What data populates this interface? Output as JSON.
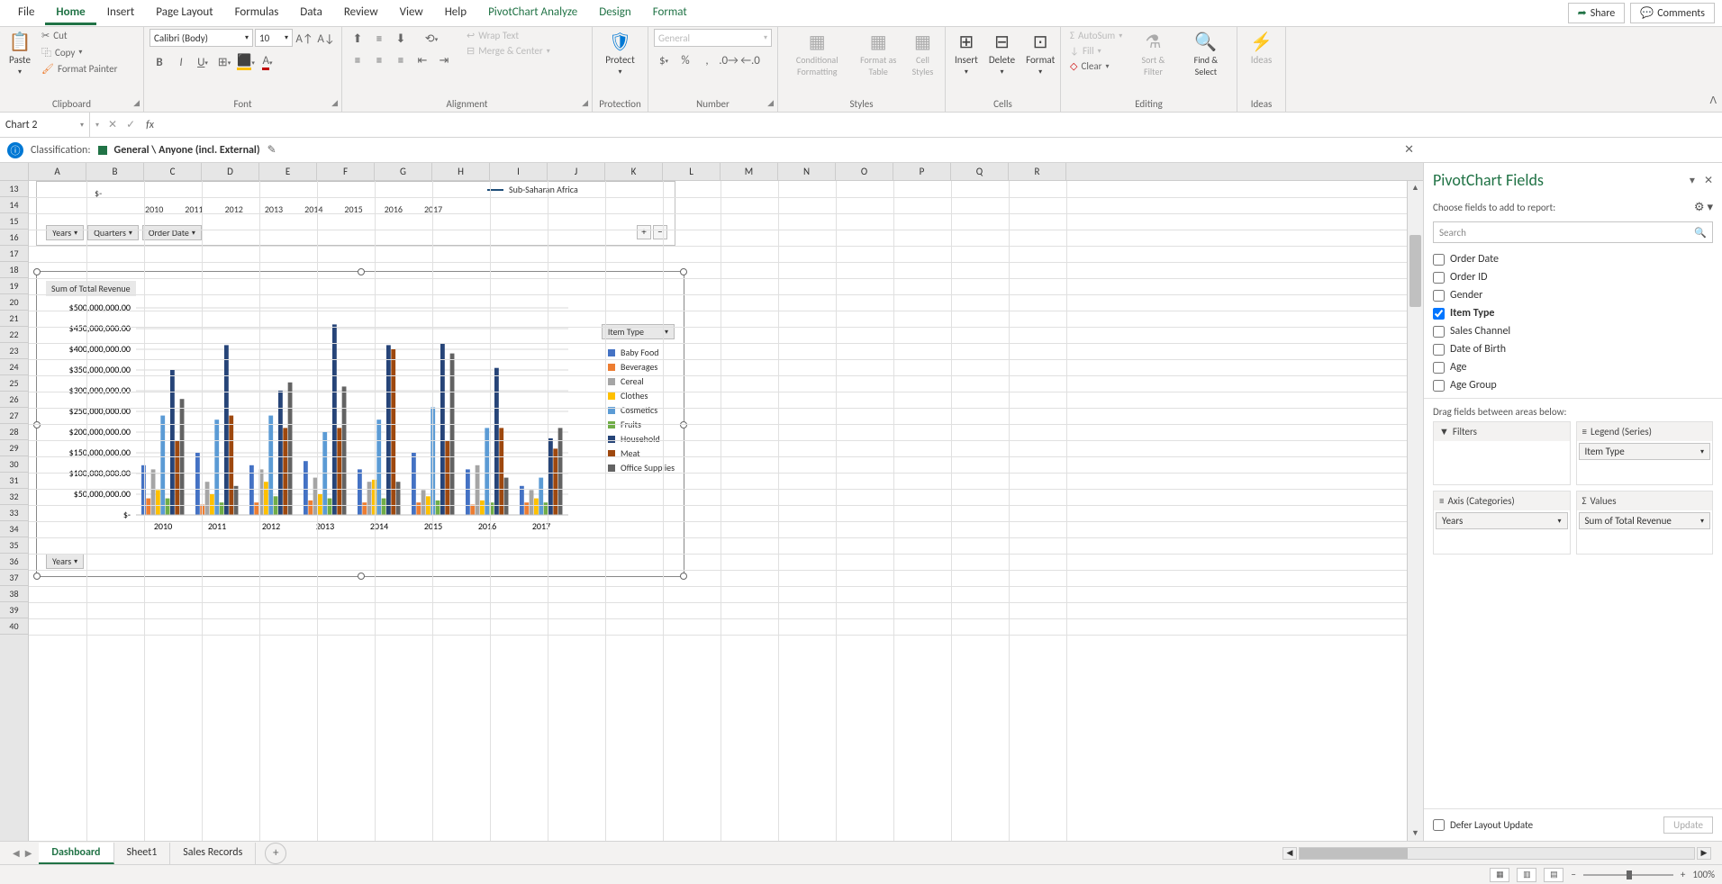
{
  "menu": {
    "tabs": [
      "File",
      "Home",
      "Insert",
      "Page Layout",
      "Formulas",
      "Data",
      "Review",
      "View",
      "Help",
      "PivotChart Analyze",
      "Design",
      "Format"
    ],
    "active": "Home",
    "green_start_index": 9,
    "share": "Share",
    "comments": "Comments"
  },
  "ribbon": {
    "clipboard": {
      "label": "Clipboard",
      "paste": "Paste",
      "cut": "Cut",
      "copy": "Copy",
      "fp": "Format Painter"
    },
    "font": {
      "label": "Font",
      "name": "Calibri (Body)",
      "size": "10"
    },
    "alignment": {
      "label": "Alignment",
      "wrap": "Wrap Text",
      "merge": "Merge & Center"
    },
    "protection": {
      "label": "Protection",
      "protect": "Protect"
    },
    "number": {
      "label": "Number",
      "format": "General"
    },
    "styles": {
      "label": "Styles",
      "cf": "Conditional Formatting",
      "fat": "Format as Table",
      "cs": "Cell Styles"
    },
    "cells": {
      "label": "Cells",
      "insert": "Insert",
      "delete": "Delete",
      "format": "Format"
    },
    "editing": {
      "label": "Editing",
      "autosum": "AutoSum",
      "fill": "Fill",
      "clear": "Clear",
      "sort": "Sort & Filter",
      "find": "Find & Select"
    },
    "ideas": {
      "label": "Ideas",
      "ideas": "Ideas"
    }
  },
  "namebox": "Chart 2",
  "classification": {
    "label": "Classification:",
    "value": "General \\ Anyone (incl. External)"
  },
  "columns": [
    "A",
    "B",
    "C",
    "D",
    "E",
    "F",
    "G",
    "H",
    "I",
    "J",
    "K",
    "L",
    "M",
    "N",
    "O",
    "P",
    "Q",
    "R"
  ],
  "rows_start": 13,
  "rows_end": 40,
  "chart1": {
    "legend": "Sub-Saharan Africa",
    "legend_color": "#1f4e79",
    "ylabel": "$-",
    "xticks": [
      "2010",
      "2011",
      "2012",
      "2013",
      "2014",
      "2015",
      "2016",
      "2017"
    ],
    "fields": [
      "Years",
      "Quarters",
      "Order Date"
    ]
  },
  "chart2": {
    "title": "Sum of Total Revenue",
    "legend_title": "Item Type",
    "series": [
      {
        "label": "Baby Food",
        "color": "#4472c4"
      },
      {
        "label": "Beverages",
        "color": "#ed7d31"
      },
      {
        "label": "Cereal",
        "color": "#a5a5a5"
      },
      {
        "label": "Clothes",
        "color": "#ffc000"
      },
      {
        "label": "Cosmetics",
        "color": "#5b9bd5"
      },
      {
        "label": "Fruits",
        "color": "#70ad47"
      },
      {
        "label": "Household",
        "color": "#264478"
      },
      {
        "label": "Meat",
        "color": "#9e480e"
      },
      {
        "label": "Office Supplies",
        "color": "#636363"
      }
    ],
    "yticks": [
      "$500,000,000.00",
      "$450,000,000.00",
      "$400,000,000.00",
      "$350,000,000.00",
      "$300,000,000.00",
      "$250,000,000.00",
      "$200,000,000.00",
      "$150,000,000.00",
      "$100,000,000.00",
      "$50,000,000.00",
      "$-"
    ],
    "xticks": [
      "2010",
      "2011",
      "2012",
      "2013",
      "2014",
      "2015",
      "2016",
      "2017"
    ],
    "data": {
      "2010": [
        120,
        40,
        110,
        60,
        240,
        40,
        350,
        180,
        280
      ],
      "2011": [
        150,
        25,
        80,
        50,
        230,
        30,
        410,
        240,
        70
      ],
      "2012": [
        120,
        30,
        110,
        80,
        240,
        45,
        300,
        210,
        320
      ],
      "2013": [
        130,
        35,
        90,
        50,
        200,
        40,
        460,
        210,
        310
      ],
      "2014": [
        110,
        30,
        80,
        85,
        230,
        40,
        410,
        400,
        80
      ],
      "2015": [
        150,
        30,
        60,
        45,
        260,
        35,
        415,
        180,
        390
      ],
      "2016": [
        110,
        25,
        120,
        35,
        210,
        30,
        355,
        210,
        90
      ],
      "2017": [
        70,
        30,
        60,
        40,
        90,
        30,
        185,
        160,
        210
      ]
    },
    "ymax": 500,
    "fields": [
      "Years"
    ],
    "plot": {
      "grid_color": "#d9d9d9",
      "axis_color": "#bfbfbf",
      "tick_fontsize": 10
    }
  },
  "taskpane": {
    "title": "PivotChart Fields",
    "sub": "Choose fields to add to report:",
    "search": "Search",
    "fields": [
      {
        "label": "Order Date",
        "checked": false
      },
      {
        "label": "Order ID",
        "checked": false
      },
      {
        "label": "Gender",
        "checked": false
      },
      {
        "label": "Item Type",
        "checked": true
      },
      {
        "label": "Sales Channel",
        "checked": false
      },
      {
        "label": "Date of Birth",
        "checked": false
      },
      {
        "label": "Age",
        "checked": false
      },
      {
        "label": "Age Group",
        "checked": false
      }
    ],
    "drag": "Drag fields between areas below:",
    "filters": "Filters",
    "legend": "Legend (Series)",
    "axis": "Axis (Categories)",
    "values": "Values",
    "legend_item": "Item Type",
    "axis_item": "Years",
    "values_item": "Sum of Total Revenue",
    "defer": "Defer Layout Update",
    "update": "Update"
  },
  "sheets": {
    "tabs": [
      "Dashboard",
      "Sheet1",
      "Sales Records"
    ],
    "active": "Dashboard"
  },
  "status": {
    "zoom": "100%"
  }
}
